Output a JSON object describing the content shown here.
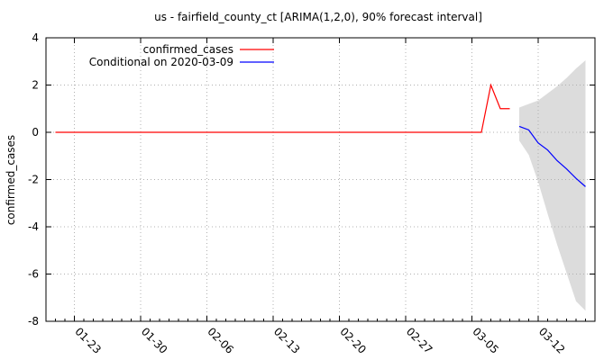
{
  "chart_data": {
    "type": "line",
    "title": "us - fairfield_county_ct [ARIMA(1,2,0), 90% forecast interval]",
    "xlabel": "",
    "ylabel": "confirmed_cases",
    "ylim": [
      -8,
      4
    ],
    "yticks": [
      4,
      2,
      0,
      -2,
      -4,
      -6,
      -8
    ],
    "xlim": [
      "2020-01-20",
      "2020-03-18"
    ],
    "xticks": [
      {
        "date": "2020-01-23",
        "label": "01-23"
      },
      {
        "date": "2020-01-30",
        "label": "01-30"
      },
      {
        "date": "2020-02-06",
        "label": "02-06"
      },
      {
        "date": "2020-02-13",
        "label": "02-13"
      },
      {
        "date": "2020-02-20",
        "label": "02-20"
      },
      {
        "date": "2020-02-27",
        "label": "02-27"
      },
      {
        "date": "2020-03-05",
        "label": "03-05"
      },
      {
        "date": "2020-03-12",
        "label": "03-12"
      }
    ],
    "grid": true,
    "legend_position": "top-left",
    "series": [
      {
        "name": "confirmed_cases",
        "color": "#ff0000",
        "x": [
          "2020-01-21",
          "2020-01-22",
          "2020-01-23",
          "2020-01-24",
          "2020-01-25",
          "2020-01-26",
          "2020-01-27",
          "2020-01-28",
          "2020-01-29",
          "2020-01-30",
          "2020-01-31",
          "2020-02-01",
          "2020-02-02",
          "2020-02-03",
          "2020-02-04",
          "2020-02-05",
          "2020-02-06",
          "2020-02-07",
          "2020-02-08",
          "2020-02-09",
          "2020-02-10",
          "2020-02-11",
          "2020-02-12",
          "2020-02-13",
          "2020-02-14",
          "2020-02-15",
          "2020-02-16",
          "2020-02-17",
          "2020-02-18",
          "2020-02-19",
          "2020-02-20",
          "2020-02-21",
          "2020-02-22",
          "2020-02-23",
          "2020-02-24",
          "2020-02-25",
          "2020-02-26",
          "2020-02-27",
          "2020-02-28",
          "2020-02-29",
          "2020-03-01",
          "2020-03-02",
          "2020-03-03",
          "2020-03-04",
          "2020-03-05",
          "2020-03-06",
          "2020-03-07",
          "2020-03-08",
          "2020-03-09"
        ],
        "values": [
          0,
          0,
          0,
          0,
          0,
          0,
          0,
          0,
          0,
          0,
          0,
          0,
          0,
          0,
          0,
          0,
          0,
          0,
          0,
          0,
          0,
          0,
          0,
          0,
          0,
          0,
          0,
          0,
          0,
          0,
          0,
          0,
          0,
          0,
          0,
          0,
          0,
          0,
          0,
          0,
          0,
          0,
          0,
          0,
          0,
          0,
          2,
          1,
          1
        ]
      },
      {
        "name": "Conditional on 2020-03-09",
        "color": "#0000ff",
        "x": [
          "2020-03-10",
          "2020-03-11",
          "2020-03-12",
          "2020-03-13",
          "2020-03-14",
          "2020-03-15",
          "2020-03-16",
          "2020-03-17"
        ],
        "values": [
          0.25,
          0.1,
          -0.45,
          -0.75,
          -1.2,
          -1.55,
          -1.95,
          -2.3
        ]
      }
    ],
    "forecast_interval": {
      "color": "#dcdcdc",
      "x": [
        "2020-03-10",
        "2020-03-11",
        "2020-03-12",
        "2020-03-13",
        "2020-03-14",
        "2020-03-15",
        "2020-03-16",
        "2020-03-17"
      ],
      "lower": [
        -0.35,
        -0.95,
        -2.1,
        -3.45,
        -4.75,
        -5.95,
        -7.15,
        -7.55
      ],
      "upper": [
        1.05,
        1.2,
        1.35,
        1.65,
        1.95,
        2.3,
        2.7,
        3.05
      ]
    }
  }
}
